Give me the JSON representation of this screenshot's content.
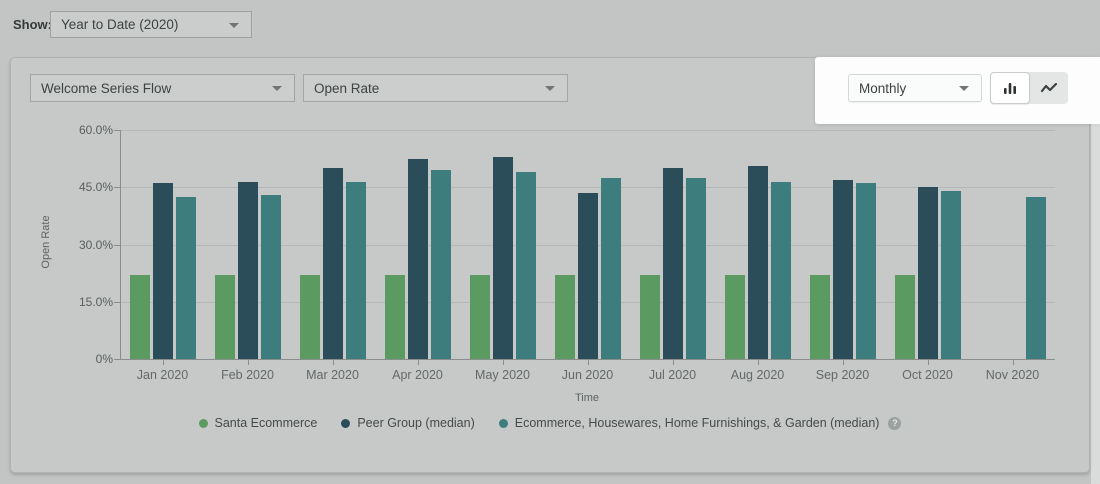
{
  "toolbar": {
    "show_label": "Show:",
    "period_dropdown": {
      "value": "Year to Date (2020)"
    }
  },
  "panel": {
    "flow_dropdown": {
      "value": "Welcome Series Flow"
    },
    "metric_dropdown": {
      "value": "Open Rate"
    },
    "granularity_dropdown": {
      "value": "Monthly"
    },
    "chart_type_toggle": {
      "selected": "bar",
      "options": [
        "bar",
        "line"
      ]
    }
  },
  "chart_data": {
    "type": "bar",
    "title": "",
    "xlabel": "Time",
    "ylabel": "Open Rate",
    "ylim": [
      0,
      60
    ],
    "yticks": [
      0,
      15,
      30,
      45,
      60
    ],
    "ytick_labels": [
      "0%",
      "15.0%",
      "30.0%",
      "45.0%",
      "60.0%"
    ],
    "grid": true,
    "legend_position": "bottom",
    "categories": [
      "Jan 2020",
      "Feb 2020",
      "Mar 2020",
      "Apr 2020",
      "May 2020",
      "Jun 2020",
      "Jul 2020",
      "Aug 2020",
      "Sep 2020",
      "Oct 2020",
      "Nov 2020"
    ],
    "series": [
      {
        "name": "Santa Ecommerce",
        "color": "#5b9b61",
        "values": [
          22,
          22,
          22,
          22,
          22,
          22,
          22,
          22,
          22,
          22,
          null
        ]
      },
      {
        "name": "Peer Group (median)",
        "color": "#2b4d59",
        "values": [
          46,
          46.5,
          50,
          52.5,
          53,
          43.5,
          50,
          50.5,
          47,
          45,
          null
        ]
      },
      {
        "name": "Ecommerce, Housewares, Home Furnishings, & Garden (median)",
        "color": "#3d7d7d",
        "values": [
          42.5,
          43,
          46.5,
          49.5,
          49,
          47.5,
          47.5,
          46.5,
          46,
          44,
          42.5
        ]
      }
    ]
  },
  "legend": {
    "help_icon": "?"
  },
  "colors": {
    "page_dim_background": "#c2c5c4",
    "panel_background": "#c7c9c8",
    "spotlight_background": "#fdfdfd",
    "series_green": "#5b9b61",
    "series_dark_teal": "#2b4d59",
    "series_teal": "#3d7d7d",
    "gridline": "#b5b8b7",
    "axis": "#898e8c"
  }
}
